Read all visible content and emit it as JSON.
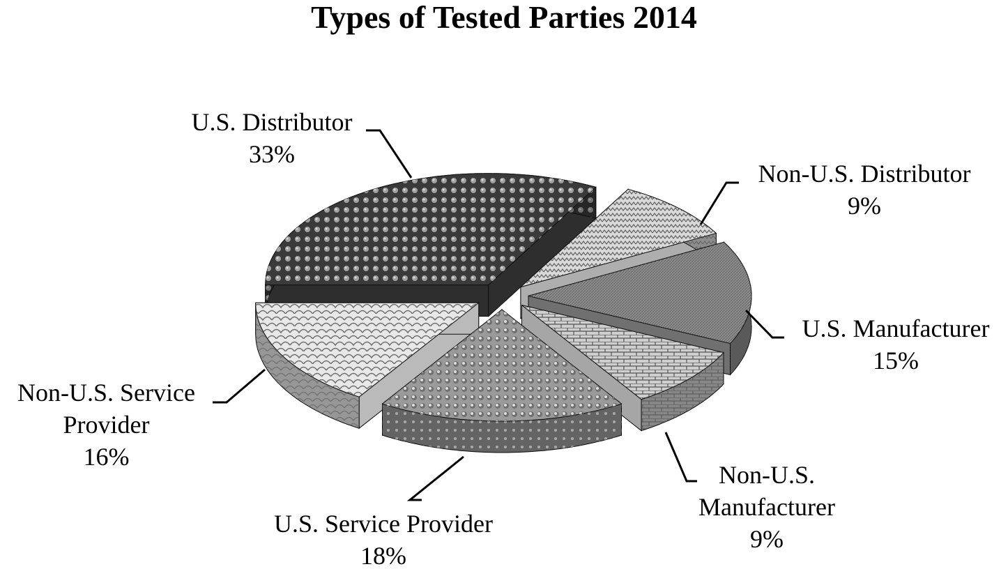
{
  "chart_data": {
    "type": "pie",
    "title": "Types of Tested Parties 2014",
    "categories": [
      "U.S. Distributor",
      "Non-U.S. Distributor",
      "U.S. Manufacturer",
      "Non-U.S. Manufacturer",
      "U.S. Service Provider",
      "Non-U.S. Service Provider"
    ],
    "values": [
      33,
      9,
      15,
      9,
      18,
      16
    ],
    "value_labels": [
      "33%",
      "9%",
      "15%",
      "9%",
      "18%",
      "16%"
    ],
    "colors": [
      "#3a3a3a",
      "#d9d9d9",
      "#8c8c8c",
      "#cfcfcf",
      "#9a9a9a",
      "#e8e8e8"
    ]
  }
}
